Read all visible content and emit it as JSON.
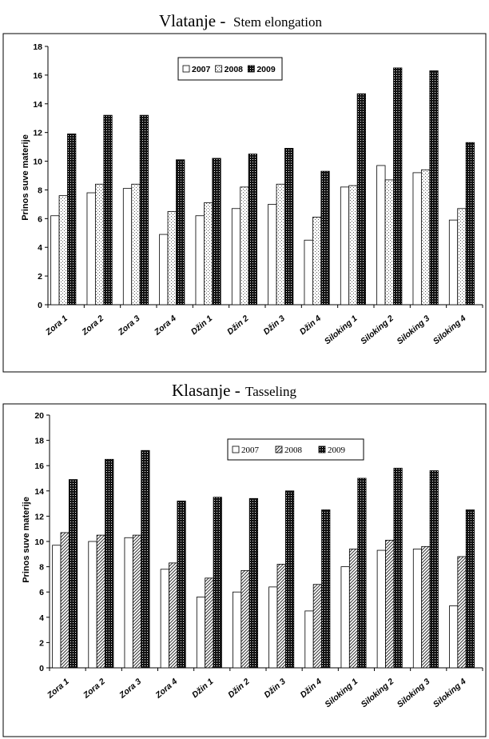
{
  "charts": [
    {
      "title_main": "Vlatanje -",
      "title_sub": "Stem elongation"
    },
    {
      "title_main": "Klasanje -",
      "title_sub": "Tasseling"
    }
  ],
  "chart_data": [
    {
      "type": "bar",
      "title": "Vlatanje - Stem elongation",
      "ylabel": "Prinos suve materije",
      "xlabel": "",
      "ylim": [
        0,
        18
      ],
      "yticks": [
        0,
        2,
        4,
        6,
        8,
        10,
        12,
        14,
        16,
        18
      ],
      "categories": [
        "Zora 1",
        "Zora 2",
        "Zora 3",
        "Zora 4",
        "Džin 1",
        "Džin 2",
        "Džin 3",
        "Džin 4",
        "Siloking 1",
        "Siloking 2",
        "Siloking 3",
        "Siloking 4"
      ],
      "series": [
        {
          "name": "2007",
          "values": [
            6.2,
            7.8,
            8.1,
            4.9,
            6.2,
            6.7,
            7.0,
            4.5,
            8.2,
            9.7,
            9.2,
            5.9
          ]
        },
        {
          "name": "2008",
          "values": [
            7.6,
            8.4,
            8.4,
            6.5,
            7.1,
            8.2,
            8.4,
            6.1,
            8.3,
            8.7,
            9.4,
            6.7
          ]
        },
        {
          "name": "2009",
          "values": [
            11.9,
            13.2,
            13.2,
            10.1,
            10.2,
            10.5,
            10.9,
            9.3,
            14.7,
            16.5,
            16.3,
            11.3
          ]
        }
      ],
      "legend": "top-center",
      "grid": false
    },
    {
      "type": "bar",
      "title": "Klasanje - Tasseling",
      "ylabel": "Prinos suve materije",
      "xlabel": "",
      "ylim": [
        0,
        20
      ],
      "yticks": [
        0,
        2,
        4,
        6,
        8,
        10,
        12,
        14,
        16,
        18,
        20
      ],
      "categories": [
        "Zora 1",
        "Zora 2",
        "Zora 3",
        "Zora 4",
        "Džin 1",
        "Džin 2",
        "Džin 3",
        "Džin 4",
        "Siloking 1",
        "Siloking 2",
        "Siloking 3",
        "Siloking 4"
      ],
      "series": [
        {
          "name": "2007",
          "values": [
            9.7,
            10.0,
            10.3,
            7.8,
            5.6,
            6.0,
            6.4,
            4.5,
            8.0,
            9.3,
            9.4,
            4.9
          ]
        },
        {
          "name": "2008",
          "values": [
            10.7,
            10.5,
            10.5,
            8.3,
            7.1,
            7.7,
            8.2,
            6.6,
            9.4,
            10.1,
            9.6,
            8.8
          ]
        },
        {
          "name": "2009",
          "values": [
            14.9,
            16.5,
            17.2,
            13.2,
            13.5,
            13.4,
            14.0,
            12.5,
            15.0,
            15.8,
            15.6,
            12.5
          ]
        }
      ],
      "legend": "top-center",
      "grid": false
    }
  ]
}
